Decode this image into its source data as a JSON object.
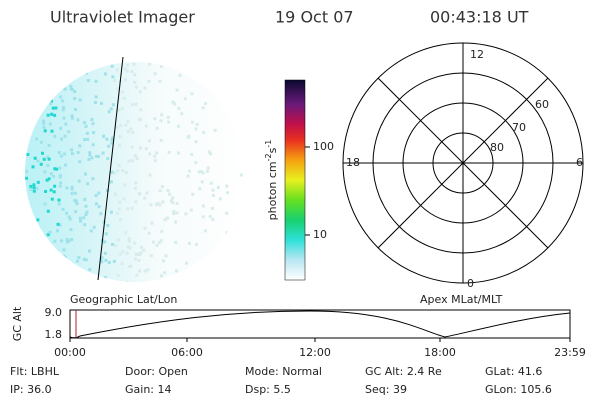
{
  "header": {
    "instrument": "Ultraviolet Imager",
    "date": "19 Oct 07",
    "time": "00:43:18 UT"
  },
  "colorbar": {
    "unit": {
      "base": "photon cm",
      "exp1": "-2",
      "mid": "s",
      "exp2": "-1"
    },
    "ticks": [
      "100",
      "10"
    ]
  },
  "polar": {
    "mlt_labels": [
      "12",
      "6",
      "18",
      "0"
    ],
    "lat_labels": [
      "60",
      "70",
      "80"
    ]
  },
  "altitude_plot": {
    "y_label": "GC Alt",
    "y_ticks": [
      "9.0",
      "1.8"
    ],
    "left_title": "Geographic Lat/Lon",
    "right_title": "Apex MLat/MLT",
    "x_ticks": [
      "00:00",
      "06:00",
      "12:00",
      "18:00",
      "23:59"
    ]
  },
  "footer": {
    "rows": [
      [
        {
          "label": "Flt:",
          "value": "LBHL"
        },
        {
          "label": "Door:",
          "value": "Open"
        },
        {
          "label": "Mode:",
          "value": "Normal"
        },
        {
          "label": "GC Alt:",
          "value": "2.4 Re"
        },
        {
          "label": "GLat:",
          "value": "41.6"
        }
      ],
      [
        {
          "label": "IP:",
          "value": "36.0"
        },
        {
          "label": "Gain:",
          "value": "14"
        },
        {
          "label": "Dsp:",
          "value": "5.5"
        },
        {
          "label": "Seq:",
          "value": "39"
        },
        {
          "label": "GLon:",
          "value": "105.6"
        }
      ]
    ]
  }
}
